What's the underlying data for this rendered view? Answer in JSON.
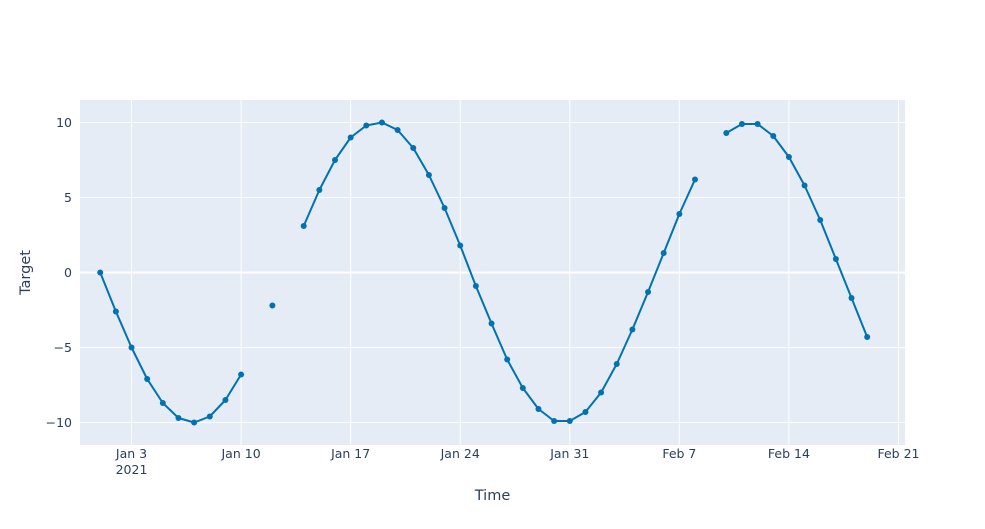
{
  "chart_data": {
    "type": "line",
    "title": "",
    "xlabel": "Time",
    "ylabel": "Target",
    "x_type": "date",
    "xlim": [
      "2020-12-30T17:00",
      "2021-02-21T10:00"
    ],
    "ylim": [
      -11.5,
      11.5
    ],
    "grid": true,
    "legend": "none",
    "colors": {
      "plot_bg": "#e5ecf6",
      "grid": "#ffffff",
      "line": "#0072b2",
      "text": "#2a3f5f"
    },
    "x_ticks": [
      {
        "date": "2021-01-03",
        "label": "Jan 3",
        "sublabel": "2021"
      },
      {
        "date": "2021-01-10",
        "label": "Jan 10",
        "sublabel": ""
      },
      {
        "date": "2021-01-17",
        "label": "Jan 17",
        "sublabel": ""
      },
      {
        "date": "2021-01-24",
        "label": "Jan 24",
        "sublabel": ""
      },
      {
        "date": "2021-01-31",
        "label": "Jan 31",
        "sublabel": ""
      },
      {
        "date": "2021-02-07",
        "label": "Feb 7",
        "sublabel": ""
      },
      {
        "date": "2021-02-14",
        "label": "Feb 14",
        "sublabel": ""
      },
      {
        "date": "2021-02-21",
        "label": "Feb 21",
        "sublabel": ""
      }
    ],
    "y_ticks": [
      {
        "value": 10,
        "label": "10"
      },
      {
        "value": 5,
        "label": "5"
      },
      {
        "value": 0,
        "label": "0"
      },
      {
        "value": -5,
        "label": "−5"
      },
      {
        "value": -10,
        "label": "−10"
      }
    ],
    "series": [
      {
        "mode": "lines+markers",
        "x": [
          "2021-01-01",
          "2021-01-02",
          "2021-01-03",
          "2021-01-04",
          "2021-01-05",
          "2021-01-06",
          "2021-01-07",
          "2021-01-08",
          "2021-01-09",
          "2021-01-10",
          "2021-01-11",
          "2021-01-12",
          "2021-01-13",
          "2021-01-14",
          "2021-01-15",
          "2021-01-16",
          "2021-01-17",
          "2021-01-18",
          "2021-01-19",
          "2021-01-20",
          "2021-01-21",
          "2021-01-22",
          "2021-01-23",
          "2021-01-24",
          "2021-01-25",
          "2021-01-26",
          "2021-01-27",
          "2021-01-28",
          "2021-01-29",
          "2021-01-30",
          "2021-01-31",
          "2021-02-01",
          "2021-02-02",
          "2021-02-03",
          "2021-02-04",
          "2021-02-05",
          "2021-02-06",
          "2021-02-07",
          "2021-02-08",
          "2021-02-09",
          "2021-02-10",
          "2021-02-11",
          "2021-02-12",
          "2021-02-13",
          "2021-02-14",
          "2021-02-15",
          "2021-02-16",
          "2021-02-17",
          "2021-02-18",
          "2021-02-19"
        ],
        "y": [
          0,
          -2.6,
          -5.0,
          -7.1,
          -8.7,
          -9.7,
          -10.0,
          -9.6,
          -8.5,
          -6.8,
          null,
          -2.2,
          null,
          3.1,
          5.5,
          7.5,
          9.0,
          9.8,
          10.0,
          9.5,
          8.3,
          6.5,
          4.3,
          1.8,
          -0.9,
          -3.4,
          -5.8,
          -7.7,
          -9.1,
          -9.9,
          -9.9,
          -9.3,
          -8.0,
          -6.1,
          -3.8,
          -1.3,
          1.3,
          3.9,
          6.2,
          null,
          9.3,
          9.9,
          9.9,
          9.1,
          7.7,
          5.8,
          3.5,
          0.9,
          -1.7,
          -4.3
        ]
      }
    ]
  }
}
